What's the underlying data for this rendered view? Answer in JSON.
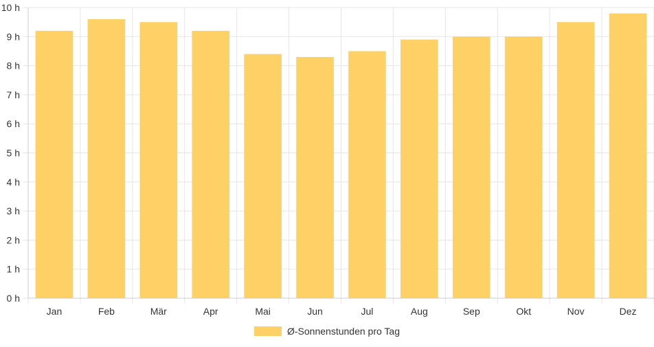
{
  "chart_data": {
    "type": "bar",
    "categories": [
      "Jan",
      "Feb",
      "Mär",
      "Apr",
      "Mai",
      "Jun",
      "Jul",
      "Aug",
      "Sep",
      "Okt",
      "Nov",
      "Dez"
    ],
    "series": [
      {
        "name": "Ø-Sonnenstunden pro Tag",
        "values": [
          9.2,
          9.6,
          9.5,
          9.2,
          8.4,
          8.3,
          8.5,
          8.9,
          9.0,
          9.0,
          9.5,
          9.8
        ]
      }
    ],
    "ylim": [
      0,
      10
    ],
    "yticks": [
      "0 h",
      "1 h",
      "2 h",
      "3 h",
      "4 h",
      "5 h",
      "6 h",
      "7 h",
      "8 h",
      "9 h",
      "10 h"
    ],
    "grid": true,
    "legend_position": "bottom",
    "colors": {
      "bar": "#fdd166",
      "grid": "#e5e5e5",
      "axis": "#cccccc"
    }
  }
}
